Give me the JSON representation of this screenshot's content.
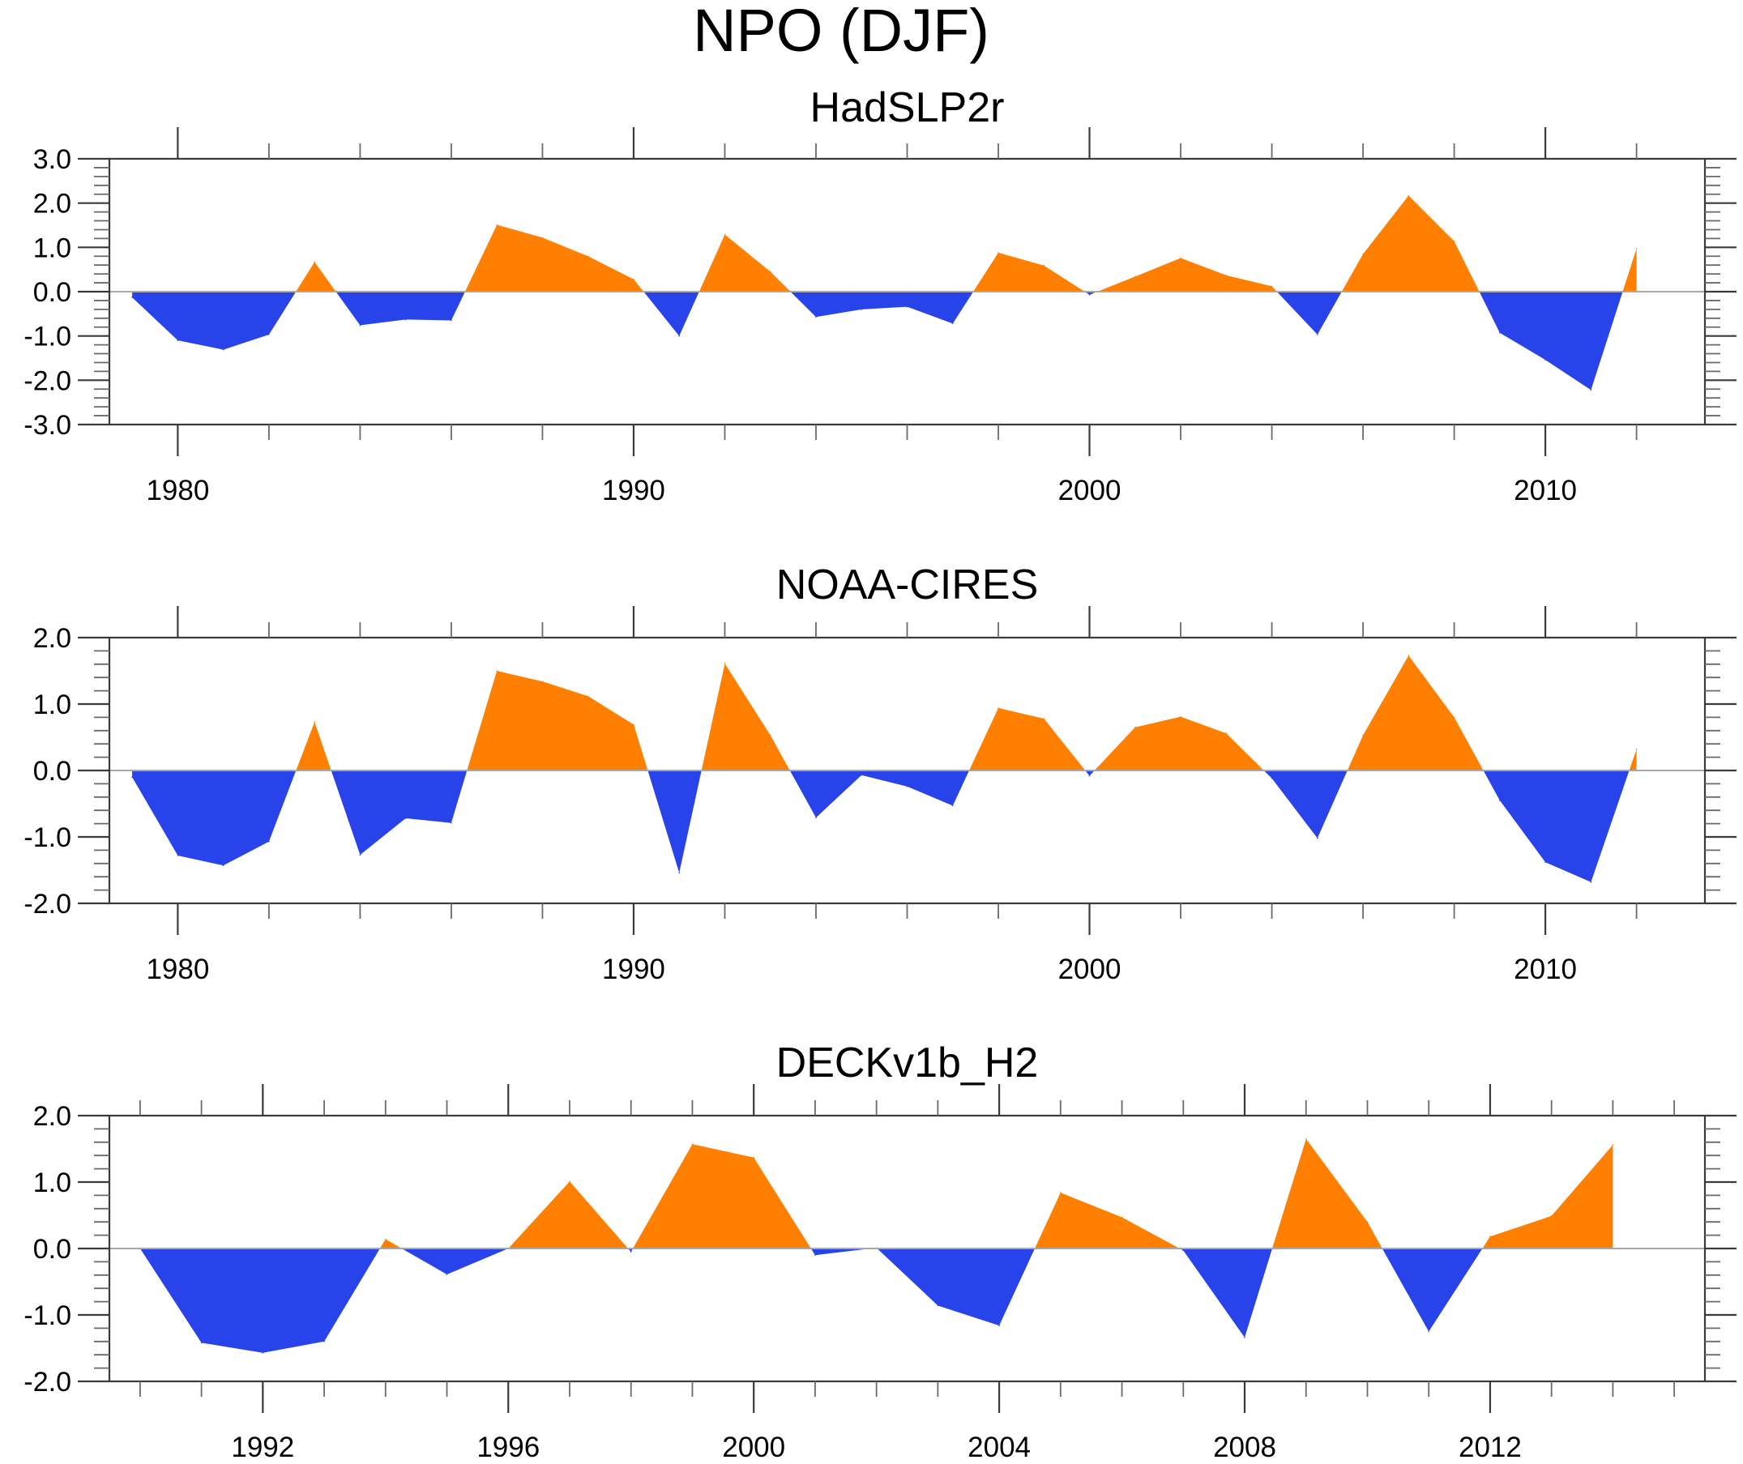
{
  "figure": {
    "title": "NPO (DJF)"
  },
  "chart_data": [
    {
      "type": "area",
      "title": "HadSLP2r",
      "xlabel": "",
      "ylabel": "",
      "xlim": [
        1978.5,
        2013.5
      ],
      "ylim": [
        -3.0,
        3.0
      ],
      "yticks": [
        -3.0,
        -2.0,
        -1.0,
        0.0,
        1.0,
        2.0,
        3.0
      ],
      "ytick_labels": [
        "-3.0",
        "-2.0",
        "-1.0",
        "0.0",
        "1.0",
        "2.0",
        "3.0"
      ],
      "ytick_minor_step": 0.2,
      "xticks_major": [
        1980,
        1990,
        2000,
        2010
      ],
      "xtick_labels": [
        "1980",
        "1990",
        "2000",
        "2010"
      ],
      "xtick_minor_step": 2,
      "positive_color": "#FF8000",
      "negative_color": "#2943EA",
      "zero_line_color": "#A8A8A8",
      "grid": false,
      "x": [
        1979,
        1980,
        1981,
        1982,
        1983,
        1984,
        1985,
        1986,
        1987,
        1988,
        1989,
        1990,
        1991,
        1992,
        1993,
        1994,
        1995,
        1996,
        1997,
        1998,
        1999,
        2000,
        2001,
        2002,
        2003,
        2004,
        2005,
        2006,
        2007,
        2008,
        2009,
        2010,
        2011,
        2012
      ],
      "values": [
        -0.13,
        -1.1,
        -1.31,
        -0.97,
        0.67,
        -0.76,
        -0.63,
        -0.65,
        1.51,
        1.22,
        0.8,
        0.28,
        -1.0,
        1.29,
        0.45,
        -0.57,
        -0.4,
        -0.34,
        -0.72,
        0.88,
        0.59,
        -0.07,
        0.34,
        0.76,
        0.37,
        0.12,
        -0.97,
        0.85,
        2.17,
        1.14,
        -0.93,
        -1.54,
        -2.22,
        0.97
      ]
    },
    {
      "type": "area",
      "title": "NOAA-CIRES",
      "xlabel": "",
      "ylabel": "",
      "xlim": [
        1978.5,
        2013.5
      ],
      "ylim": [
        -2.0,
        2.0
      ],
      "yticks": [
        -2.0,
        -1.0,
        0.0,
        1.0,
        2.0
      ],
      "ytick_labels": [
        "-2.0",
        "-1.0",
        "0.0",
        "1.0",
        "2.0"
      ],
      "ytick_minor_step": 0.2,
      "xticks_major": [
        1980,
        1990,
        2000,
        2010
      ],
      "xtick_labels": [
        "1980",
        "1990",
        "2000",
        "2010"
      ],
      "xtick_minor_step": 2,
      "positive_color": "#FF8000",
      "negative_color": "#2943EA",
      "zero_line_color": "#A8A8A8",
      "grid": false,
      "x": [
        1979,
        1980,
        1981,
        1982,
        1983,
        1984,
        1985,
        1986,
        1987,
        1988,
        1989,
        1990,
        1991,
        1992,
        1993,
        1994,
        1995,
        1996,
        1997,
        1998,
        1999,
        2000,
        2001,
        2002,
        2003,
        2004,
        2005,
        2006,
        2007,
        2008,
        2009,
        2010,
        2011,
        2012
      ],
      "values": [
        -0.1,
        -1.28,
        -1.43,
        -1.07,
        0.73,
        -1.27,
        -0.72,
        -0.79,
        1.5,
        1.34,
        1.12,
        0.69,
        -1.54,
        1.61,
        0.53,
        -0.71,
        -0.07,
        -0.24,
        -0.53,
        0.94,
        0.78,
        -0.08,
        0.65,
        0.81,
        0.56,
        -0.12,
        -1.02,
        0.53,
        1.73,
        0.8,
        -0.45,
        -1.38,
        -1.68,
        0.32
      ]
    },
    {
      "type": "area",
      "title": "DECKv1b_H2",
      "xlabel": "",
      "ylabel": "",
      "xlim": [
        1989.5,
        2015.5
      ],
      "ylim": [
        -2.0,
        2.0
      ],
      "yticks": [
        -2.0,
        -1.0,
        0.0,
        1.0,
        2.0
      ],
      "ytick_labels": [
        "-2.0",
        "-1.0",
        "0.0",
        "1.0",
        "2.0"
      ],
      "ytick_minor_step": 0.2,
      "xticks_major": [
        1992,
        1996,
        2000,
        2004,
        2008,
        2012
      ],
      "xtick_labels": [
        "1992",
        "1996",
        "2000",
        "2004",
        "2008",
        "2012"
      ],
      "xtick_minor_step": 1,
      "positive_color": "#FF8000",
      "negative_color": "#2943EA",
      "zero_line_color": "#A8A8A8",
      "grid": false,
      "x": [
        1990,
        1991,
        1992,
        1993,
        1994,
        1995,
        1996,
        1997,
        1998,
        1999,
        2000,
        2001,
        2002,
        2003,
        2004,
        2005,
        2006,
        2007,
        2008,
        2009,
        2010,
        2011,
        2012,
        2013,
        2014
      ],
      "values": [
        0.0,
        -1.42,
        -1.57,
        -1.4,
        0.14,
        -0.39,
        0.0,
        1.01,
        -0.05,
        1.57,
        1.37,
        -0.1,
        0.01,
        -0.86,
        -1.16,
        0.84,
        0.47,
        -0.03,
        -1.34,
        1.65,
        0.4,
        -1.25,
        0.18,
        0.49,
        1.56
      ]
    }
  ]
}
